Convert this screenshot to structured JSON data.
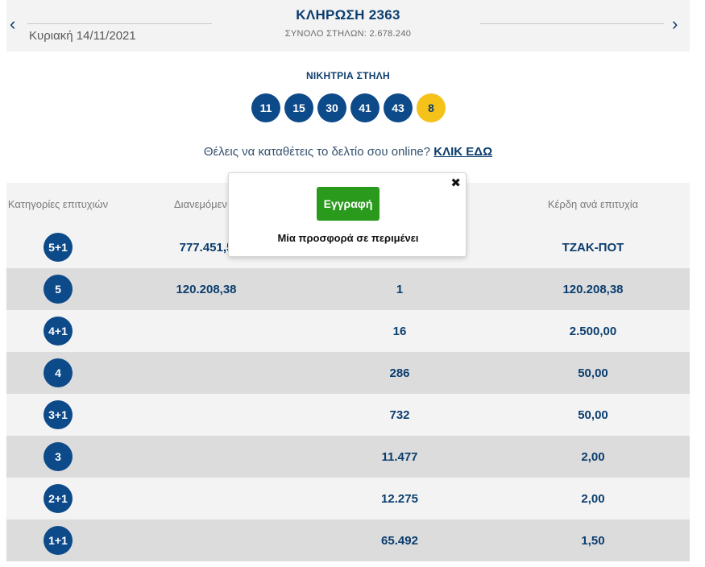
{
  "header": {
    "prev_icon": "chevron-left-icon",
    "next_icon": "chevron-right-icon",
    "prev_glyph": "‹",
    "next_glyph": "›",
    "date": "Κυριακή 14/11/2021",
    "title": "ΚΛΗΡΩΣΗ 2363",
    "total_columns": "ΣΥΝΟΛΟ ΣΤΗΛΩΝ: 2.678.240"
  },
  "winning": {
    "label": "ΝΙΚΗΤΡΙΑ ΣΤΗΛΗ",
    "numbers": [
      "11",
      "15",
      "30",
      "41",
      "43"
    ],
    "bonus": "8"
  },
  "cta": {
    "text": "Θέλεις να καταθέτεις το δελτίο σου online? ",
    "link": "ΚΛΙΚ ΕΔΩ"
  },
  "table": {
    "headers": {
      "category": "Κατηγορίες επιτυχιών",
      "distributed": "Διανεμόμεν",
      "winners": "",
      "prize": "Κέρδη ανά επιτυχία"
    },
    "rows": [
      {
        "category": "5+1",
        "distributed": "777.451,5",
        "winners": "",
        "prize": "ΤΖΑΚ-ΠΟΤ"
      },
      {
        "category": "5",
        "distributed": "120.208,38",
        "winners": "1",
        "prize": "120.208,38"
      },
      {
        "category": "4+1",
        "distributed": "",
        "winners": "16",
        "prize": "2.500,00"
      },
      {
        "category": "4",
        "distributed": "",
        "winners": "286",
        "prize": "50,00"
      },
      {
        "category": "3+1",
        "distributed": "",
        "winners": "732",
        "prize": "50,00"
      },
      {
        "category": "3",
        "distributed": "",
        "winners": "11.477",
        "prize": "2,00"
      },
      {
        "category": "2+1",
        "distributed": "",
        "winners": "12.275",
        "prize": "2,00"
      },
      {
        "category": "1+1",
        "distributed": "",
        "winners": "65.492",
        "prize": "1,50"
      }
    ]
  },
  "popup": {
    "close_icon": "close-icon",
    "close_glyph": "✖",
    "button_label": "Εγγραφή",
    "text": "Μία προσφορά σε περιμένει",
    "button_color": "#2a9a1d"
  },
  "colors": {
    "primary": "#0b3d6e",
    "ball": "#0d4a8a",
    "bonus_ball": "#f5c21a"
  }
}
